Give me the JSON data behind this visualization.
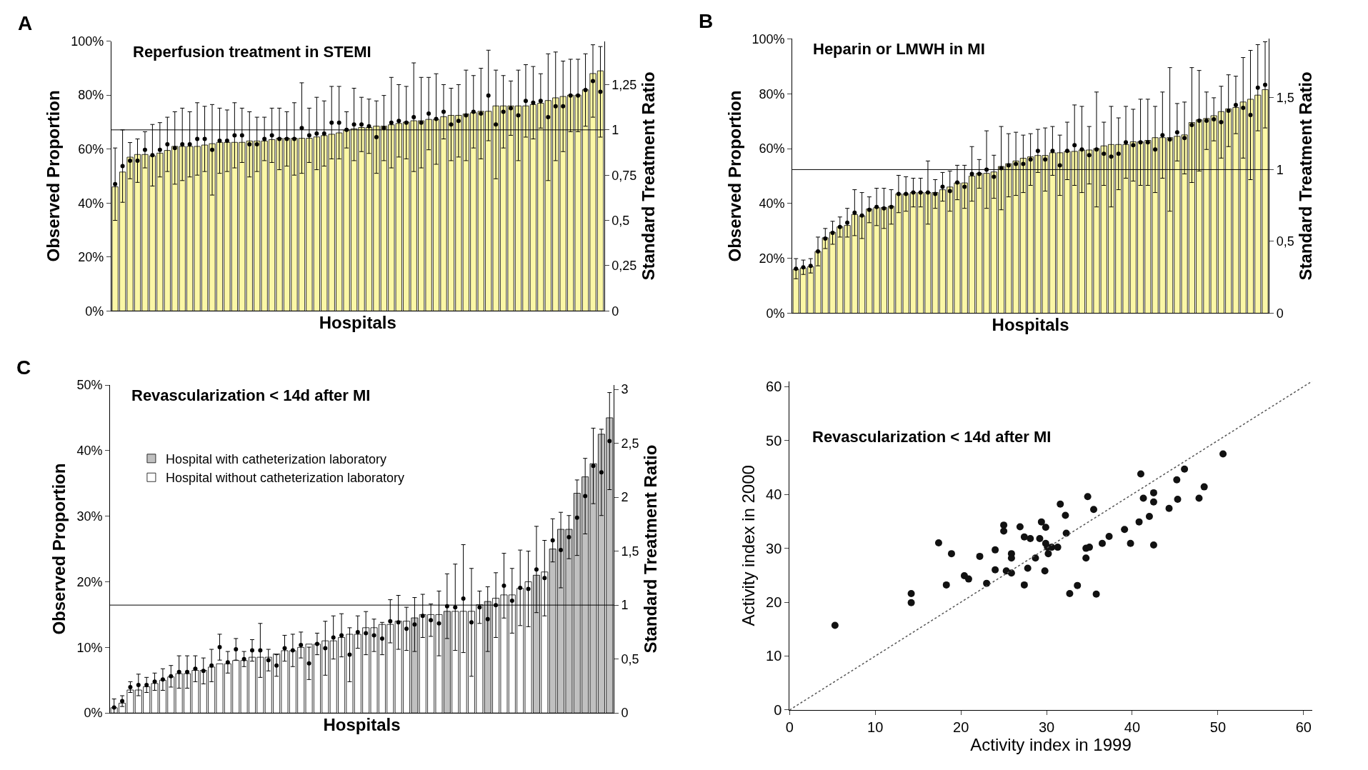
{
  "chart_data": [
    {
      "type": "bar",
      "title": "Reperfusion treatment in STEMI",
      "xlabel": "Hospitals",
      "ylabel": "Observed Proportion",
      "y2label": "Standard Treatment Ratio",
      "annotations": [
        "A"
      ],
      "categories": [
        null,
        null,
        null,
        null,
        null,
        null,
        null,
        null,
        null,
        null,
        null,
        null,
        null,
        null,
        null,
        null,
        null,
        null,
        null,
        null,
        null,
        null,
        null,
        null,
        null,
        null,
        null,
        null,
        null,
        null,
        null,
        null,
        null,
        null,
        null,
        null,
        null,
        null,
        null,
        null,
        null,
        null,
        null,
        null,
        null,
        null,
        null,
        null,
        null,
        null,
        null,
        null,
        null,
        null,
        null,
        null,
        null,
        null,
        null,
        null,
        null,
        null,
        null,
        null,
        null,
        null
      ],
      "ylim": [
        0,
        100
      ],
      "yticks": [
        {
          "value": 0,
          "label": "0%"
        },
        {
          "value": 20,
          "label": "20%"
        },
        {
          "value": 40,
          "label": "40%"
        },
        {
          "value": 60,
          "label": "60%"
        },
        {
          "value": 80,
          "label": "80%"
        },
        {
          "value": 100,
          "label": "100%"
        }
      ],
      "y2lim": [
        0,
        1.49
      ],
      "y2ticks": [
        0,
        {
          "value": 0.25,
          "label": "0,25"
        },
        {
          "value": 0.5,
          "label": "0,5"
        },
        {
          "value": 0.75,
          "label": "0,75"
        },
        1,
        {
          "value": 1.25,
          "label": "1,25"
        }
      ],
      "ref_lines": [
        {
          "axis": "y2",
          "value": 1,
          "color": "#000000"
        }
      ],
      "series": [
        {
          "color": "#fbf7a6",
          "values": [
            46,
            51.5,
            57,
            58,
            58,
            57.5,
            58.5,
            59.5,
            61,
            61,
            61,
            61,
            61.5,
            62,
            62.5,
            62.5,
            62.5,
            62.5,
            63,
            63,
            63,
            63.5,
            64,
            64,
            64,
            64,
            64,
            64.5,
            65,
            65.5,
            66,
            67,
            67.5,
            68,
            68,
            68.5,
            68.5,
            69,
            69.5,
            70,
            70.5,
            70.5,
            71,
            71,
            72,
            72.5,
            72.5,
            73,
            73.5,
            74,
            74,
            76,
            76,
            76,
            76,
            76,
            76.5,
            77,
            78,
            79,
            79.5,
            80,
            80,
            82,
            88,
            89
          ]
        },
        {
          "type": "scatter",
          "axis": "y2",
          "marker": "circle",
          "color": "#000000",
          "values": [
            0.7,
            0.8,
            0.83,
            0.83,
            0.89,
            0.86,
            0.89,
            0.92,
            0.9,
            0.92,
            0.92,
            0.95,
            0.95,
            0.89,
            0.94,
            0.94,
            0.97,
            0.97,
            0.92,
            0.92,
            0.95,
            0.97,
            0.95,
            0.95,
            0.95,
            1.01,
            0.97,
            0.98,
            0.98,
            1.04,
            1.04,
            1.0,
            1.03,
            1.03,
            1.02,
            0.96,
            1.01,
            1.04,
            1.05,
            1.04,
            1.07,
            1.04,
            1.09,
            1.06,
            1.1,
            1.03,
            1.05,
            1.08,
            1.1,
            1.09,
            1.19,
            1.03,
            1.1,
            1.12,
            1.08,
            1.16,
            1.15,
            1.16,
            1.07,
            1.13,
            1.13,
            1.19,
            1.19,
            1.22,
            1.27,
            1.21
          ],
          "errors": [
            0.2,
            0.2,
            0.1,
            0.12,
            0.1,
            0.17,
            0.15,
            0.15,
            0.2,
            0.2,
            0.18,
            0.2,
            0.18,
            0.25,
            0.18,
            0.17,
            0.18,
            0.15,
            0.18,
            0.15,
            0.12,
            0.15,
            0.17,
            0.15,
            0.2,
            0.25,
            0.15,
            0.2,
            0.18,
            0.2,
            0.2,
            0.1,
            0.2,
            0.15,
            0.15,
            0.2,
            0.18,
            0.25,
            0.2,
            0.2,
            0.3,
            0.25,
            0.2,
            0.25,
            0.15,
            0.2,
            0.2,
            0.25,
            0.2,
            0.25,
            0.25,
            0.3,
            0.2,
            0.15,
            0.25,
            0.2,
            0.2,
            0.15,
            0.35,
            0.3,
            0.25,
            0.2,
            0.2,
            0.2,
            0.2,
            0.25
          ]
        }
      ]
    },
    {
      "type": "bar",
      "title": "Heparin or LMWH in MI",
      "xlabel": "Hospitals",
      "ylabel": "Observed Proportion",
      "y2label": "Standard Treatment Ratio",
      "annotations": [
        "B"
      ],
      "categories": [
        null,
        null,
        null,
        null,
        null,
        null,
        null,
        null,
        null,
        null,
        null,
        null,
        null,
        null,
        null,
        null,
        null,
        null,
        null,
        null,
        null,
        null,
        null,
        null,
        null,
        null,
        null,
        null,
        null,
        null,
        null,
        null,
        null,
        null,
        null,
        null,
        null,
        null,
        null,
        null,
        null,
        null,
        null,
        null,
        null,
        null,
        null,
        null,
        null,
        null,
        null,
        null,
        null,
        null,
        null,
        null,
        null,
        null,
        null,
        null,
        null,
        null,
        null,
        null,
        null
      ],
      "ylim": [
        0,
        100
      ],
      "yticks": [
        {
          "value": 0,
          "label": "0%"
        },
        {
          "value": 20,
          "label": "20%"
        },
        {
          "value": 40,
          "label": "40%"
        },
        {
          "value": 60,
          "label": "60%"
        },
        {
          "value": 80,
          "label": "80%"
        },
        {
          "value": 100,
          "label": "100%"
        }
      ],
      "y2lim": [
        0,
        1.91
      ],
      "y2ticks": [
        0,
        {
          "value": 0.5,
          "label": "0,5"
        },
        1,
        {
          "value": 1.5,
          "label": "1,5"
        }
      ],
      "ref_lines": [
        {
          "axis": "y2",
          "value": 1,
          "color": "#000000"
        }
      ],
      "series": [
        {
          "color": "#fbf7a6",
          "values": [
            16,
            16.5,
            17,
            22.5,
            27.5,
            29.5,
            31.5,
            32,
            36,
            35.5,
            38,
            38.5,
            38.5,
            39,
            43.5,
            43.5,
            44,
            44,
            44,
            44,
            45,
            46,
            47.5,
            47.5,
            50,
            51,
            51,
            51.5,
            53.5,
            54.5,
            55.5,
            56.5,
            57,
            57.5,
            57.5,
            58.5,
            58.5,
            59,
            59,
            59.5,
            59.5,
            60,
            61,
            61.5,
            61.5,
            61.5,
            62.5,
            62.5,
            63,
            64,
            64,
            64,
            64.5,
            65,
            69.5,
            70.5,
            71,
            72,
            73.5,
            74.5,
            75,
            77,
            78,
            79.5,
            81.5
          ]
        },
        {
          "type": "scatter",
          "axis": "y2",
          "marker": "circle",
          "color": "#000000",
          "values": [
            0.31,
            0.32,
            0.33,
            0.43,
            0.52,
            0.56,
            0.6,
            0.63,
            0.7,
            0.68,
            0.72,
            0.74,
            0.73,
            0.74,
            0.83,
            0.83,
            0.84,
            0.84,
            0.84,
            0.83,
            0.88,
            0.85,
            0.91,
            0.88,
            0.97,
            0.97,
            1.0,
            0.95,
            1.01,
            1.03,
            1.04,
            1.04,
            1.07,
            1.13,
            1.07,
            1.13,
            1.03,
            1.13,
            1.17,
            1.14,
            1.1,
            1.14,
            1.11,
            1.09,
            1.11,
            1.19,
            1.17,
            1.19,
            1.19,
            1.14,
            1.24,
            1.21,
            1.26,
            1.22,
            1.31,
            1.34,
            1.34,
            1.35,
            1.33,
            1.41,
            1.45,
            1.43,
            1.38,
            1.57,
            1.59
          ],
          "errors": [
            0.07,
            0.05,
            0.05,
            0.1,
            0.07,
            0.08,
            0.07,
            0.1,
            0.16,
            0.16,
            0.09,
            0.13,
            0.14,
            0.12,
            0.13,
            0.12,
            0.1,
            0.1,
            0.22,
            0.1,
            0.1,
            0.14,
            0.12,
            0.15,
            0.19,
            0.1,
            0.27,
            0.15,
            0.29,
            0.22,
            0.22,
            0.2,
            0.18,
            0.15,
            0.22,
            0.17,
            0.21,
            0.2,
            0.28,
            0.3,
            0.2,
            0.4,
            0.22,
            0.35,
            0.25,
            0.25,
            0.25,
            0.3,
            0.3,
            0.3,
            0.3,
            0.5,
            0.2,
            0.25,
            0.4,
            0.35,
            0.2,
            0.15,
            0.25,
            0.25,
            0.2,
            0.35,
            0.45,
            0.3,
            0.3
          ]
        }
      ]
    },
    {
      "type": "bar",
      "title": "Revascularization < 14d after MI",
      "xlabel": "Hospitals",
      "ylabel": "Observed Proportion",
      "y2label": "Standard Treatment Ratio",
      "annotations": [
        "C"
      ],
      "legend": "top left",
      "categories": [
        null,
        null,
        null,
        null,
        null,
        null,
        null,
        null,
        null,
        null,
        null,
        null,
        null,
        null,
        null,
        null,
        null,
        null,
        null,
        null,
        null,
        null,
        null,
        null,
        null,
        null,
        null,
        null,
        null,
        null,
        null,
        null,
        null,
        null,
        null,
        null,
        null,
        null,
        null,
        null,
        null,
        null,
        null,
        null,
        null,
        null,
        null,
        null,
        null,
        null,
        null,
        null,
        null,
        null,
        null,
        null,
        null,
        null,
        null,
        null,
        null,
        null
      ],
      "ylim": [
        0,
        50
      ],
      "yticks": [
        {
          "value": 0,
          "label": "0%"
        },
        {
          "value": 10,
          "label": "10%"
        },
        {
          "value": 20,
          "label": "20%"
        },
        {
          "value": 30,
          "label": "30%"
        },
        {
          "value": 40,
          "label": "40%"
        },
        {
          "value": 50,
          "label": "50%"
        }
      ],
      "y2lim": [
        0,
        3.04
      ],
      "y2ticks": [
        0,
        {
          "value": 0.5,
          "label": "0,5"
        },
        1,
        {
          "value": 1.5,
          "label": "1,5"
        },
        2,
        {
          "value": 2.5,
          "label": "2,5"
        },
        3
      ],
      "ref_lines": [
        {
          "axis": "y2",
          "value": 1,
          "color": "#000000"
        }
      ],
      "series": [
        {
          "name": "Hospital with catheterization laboratory",
          "color": "#c0c0c0",
          "values": [
            null,
            null,
            null,
            null,
            null,
            null,
            null,
            null,
            null,
            null,
            null,
            null,
            null,
            null,
            null,
            null,
            null,
            null,
            null,
            null,
            null,
            null,
            null,
            null,
            null,
            null,
            null,
            null,
            null,
            null,
            null,
            null,
            null,
            null,
            null,
            null,
            null,
            14.5,
            null,
            null,
            null,
            15.5,
            null,
            null,
            null,
            null,
            17,
            null,
            null,
            null,
            null,
            null,
            21,
            null,
            25,
            28,
            28,
            33.5,
            36,
            38,
            42.5,
            45
          ]
        },
        {
          "name": "Hospital without catheterization laboratory",
          "color": "#ffffff",
          "values": [
            0.8,
            1.5,
            3.5,
            3.5,
            4,
            4.5,
            5,
            5.5,
            6,
            6,
            6.5,
            6.5,
            7,
            7.5,
            7.5,
            8,
            8,
            8.5,
            8.5,
            8.5,
            9,
            9.5,
            9.5,
            10,
            10.5,
            10.5,
            11,
            11,
            11.5,
            12,
            12,
            13,
            13,
            13.5,
            13.5,
            14,
            14,
            null,
            15,
            15,
            15,
            null,
            15.5,
            15.5,
            15.5,
            16.5,
            null,
            17.5,
            18,
            18,
            19,
            20,
            null,
            21.5,
            null,
            null,
            null,
            null,
            null,
            null,
            null,
            null
          ]
        },
        {
          "type": "scatter",
          "axis": "y2",
          "marker": "circle",
          "color": "#000000",
          "values": [
            0.05,
            0.11,
            0.24,
            0.26,
            0.26,
            0.29,
            0.31,
            0.34,
            0.38,
            0.38,
            0.41,
            0.39,
            0.44,
            0.61,
            0.47,
            0.59,
            0.5,
            0.58,
            0.58,
            0.49,
            0.44,
            0.6,
            0.58,
            0.63,
            0.46,
            0.64,
            0.6,
            0.7,
            0.72,
            0.54,
            0.75,
            0.74,
            0.72,
            0.69,
            0.85,
            0.84,
            0.78,
            0.82,
            0.9,
            0.86,
            0.83,
            0.99,
            0.98,
            1.06,
            0.84,
            0.98,
            0.87,
            1.0,
            1.18,
            1.04,
            1.16,
            1.15,
            1.33,
            1.25,
            1.6,
            1.51,
            1.63,
            1.81,
            2.01,
            2.29,
            2.23,
            2.52
          ],
          "errors": [
            0.08,
            0.05,
            0.05,
            0.1,
            0.07,
            0.08,
            0.1,
            0.1,
            0.15,
            0.15,
            0.12,
            0.12,
            0.15,
            0.12,
            0.1,
            0.1,
            0.07,
            0.1,
            0.25,
            0.1,
            0.1,
            0.12,
            0.15,
            0.12,
            0.15,
            0.1,
            0.25,
            0.2,
            0.2,
            0.25,
            0.15,
            0.2,
            0.15,
            0.15,
            0.2,
            0.25,
            0.2,
            0.25,
            0.2,
            0.15,
            0.3,
            0.3,
            0.4,
            0.5,
            0.5,
            0.15,
            0.3,
            0.3,
            0.3,
            0.3,
            0.35,
            0.35,
            0.4,
            0.35,
            0.2,
            0.35,
            0.2,
            0.35,
            0.35,
            0.35,
            0.4,
            0.45
          ]
        }
      ]
    },
    {
      "type": "scatter",
      "title": "Revascularization < 14d after MI",
      "xlabel": "Activity index in 1999",
      "ylabel": "Activity index in 2000",
      "xlim": [
        0,
        61
      ],
      "xticks": [
        0,
        10,
        20,
        30,
        40,
        50,
        60
      ],
      "ylim": [
        0,
        61
      ],
      "yticks": [
        0,
        10,
        20,
        30,
        40,
        50,
        60
      ],
      "series": [
        {
          "marker": "circle",
          "color": "#111111",
          "x": [
            5.3,
            14.2,
            14.2,
            17.4,
            18.9,
            18.3,
            20.4,
            20.9,
            22.2,
            23,
            24,
            24,
            25,
            25,
            25.3,
            25.9,
            25.9,
            25.9,
            26.9,
            27.4,
            27.4,
            27.8,
            28.1,
            28.7,
            29.2,
            29.4,
            29.8,
            29.9,
            29.9,
            30.1,
            30.2,
            30.6,
            31.3,
            31.6,
            32.2,
            32.3,
            32.7,
            33.6,
            34.6,
            34.6,
            34.8,
            35,
            35.5,
            35.8,
            36.5,
            37.3,
            39.1,
            39.8,
            40.8,
            41,
            41.3,
            42,
            42.5,
            42.5,
            42.5,
            44.3,
            45.2,
            45.3,
            46.1,
            47.8,
            48.4,
            50.6
          ],
          "values": [
            15.7,
            21.6,
            19.9,
            31,
            29,
            23.2,
            24.9,
            24.3,
            28.5,
            23.5,
            29.7,
            26,
            34.3,
            33.2,
            25.8,
            25.4,
            29,
            28.2,
            34,
            32.1,
            23.2,
            26.3,
            31.8,
            28.2,
            31.8,
            34.9,
            25.8,
            33.9,
            30.9,
            30.2,
            29,
            30.2,
            30.2,
            38.2,
            36.1,
            32.8,
            21.6,
            23.1,
            30,
            28.2,
            39.6,
            30.2,
            37.2,
            21.5,
            30.9,
            32.2,
            33.5,
            30.9,
            34.9,
            43.8,
            39.3,
            35.9,
            40.3,
            38.6,
            30.6,
            37.4,
            42.7,
            39.1,
            44.7,
            39.3,
            41.4,
            47.5
          ]
        },
        {
          "type": "line",
          "line_style": "dotted",
          "color": "#555555",
          "x": [
            0,
            61
          ],
          "values": [
            0,
            61
          ]
        }
      ]
    }
  ]
}
